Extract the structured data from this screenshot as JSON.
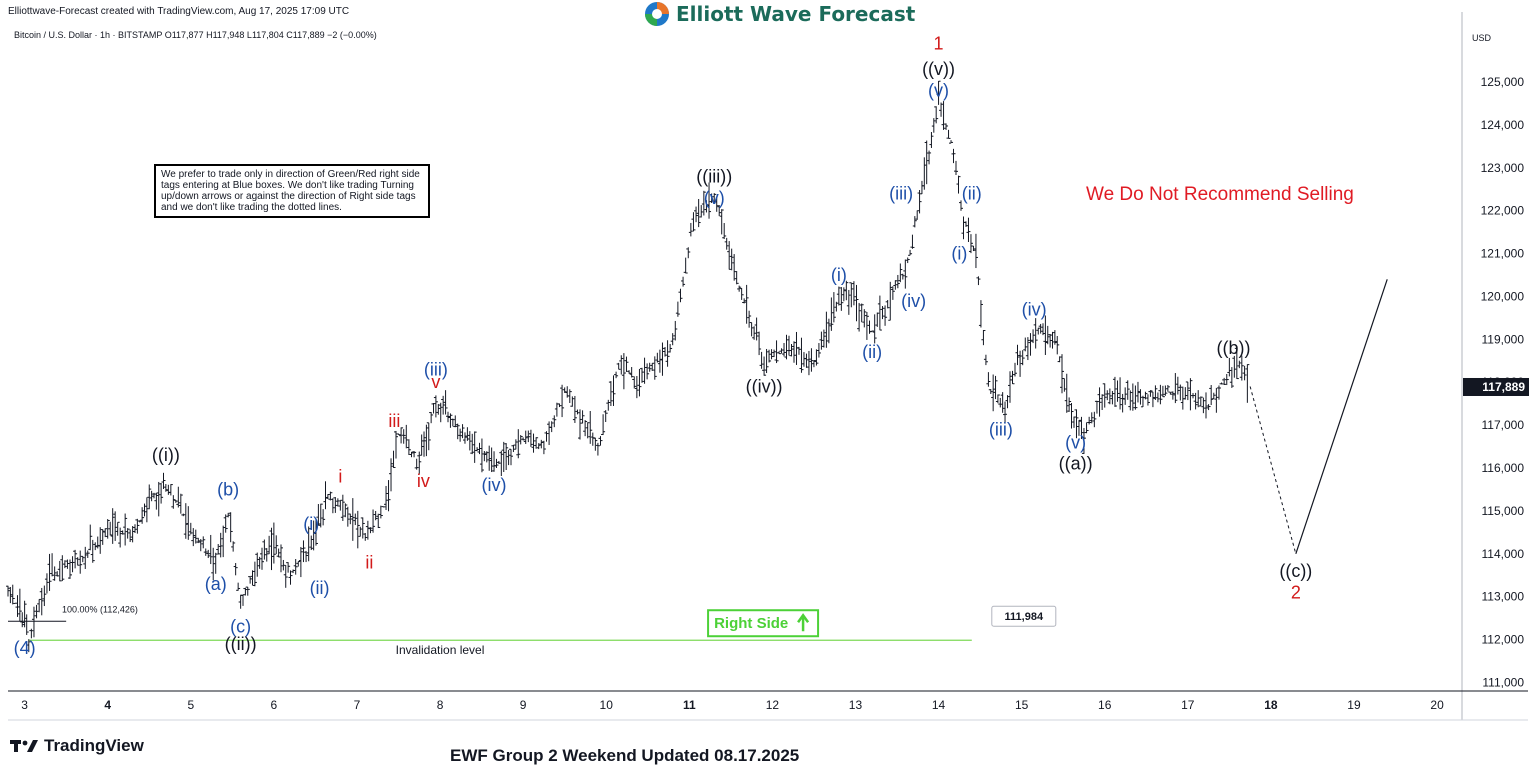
{
  "header": {
    "credit": "Elliottwave-Forecast created with TradingView.com, Aug 17, 2025 17:09 UTC",
    "logo_text": "Elliott Wave Forecast",
    "symbol_line": "Bitcoin / U.S. Dollar · 1h · BITSTAMP  O117,877  H117,948  L117,804  C117,889  −2 (−0.00%)"
  },
  "note_box": "We prefer to trade only in direction of Green/Red right side tags entering at Blue boxes. We don't like trading Turning up/down arrows or against the direction of Right side tags and we don't like trading the dotted lines.",
  "recommendation": "We Do Not Recommend Selling",
  "footer": {
    "brand": "TradingView",
    "title": "EWF Group 2 Weekend Updated 08.17.2025"
  },
  "chart_data": {
    "type": "ohlc",
    "currency": "USD",
    "x_ticks": [
      "3",
      "4",
      "5",
      "6",
      "7",
      "8",
      "9",
      "10",
      "11",
      "12",
      "13",
      "14",
      "15",
      "16",
      "17",
      "18",
      "19",
      "20"
    ],
    "y_ticks": [
      "111,000",
      "112,000",
      "113,000",
      "114,000",
      "115,000",
      "116,000",
      "117,000",
      "118,000",
      "119,000",
      "120,000",
      "121,000",
      "122,000",
      "123,000",
      "124,000",
      "125,000"
    ],
    "ylim": [
      110800,
      126400
    ],
    "xlim": [
      2.8,
      20.3
    ],
    "last_price": "117,889",
    "invalidation_price": "111,984",
    "invalidation_label": "Invalidation level",
    "fib_label": "100.00% (112,426)",
    "fib_level": 112426,
    "right_side_label": "Right Side",
    "price_path": [
      [
        2.8,
        113100
      ],
      [
        3.0,
        112500
      ],
      [
        3.05,
        112000
      ],
      [
        3.3,
        113500
      ],
      [
        3.7,
        113900
      ],
      [
        4.0,
        114600
      ],
      [
        4.3,
        114400
      ],
      [
        4.5,
        115200
      ],
      [
        4.7,
        115600
      ],
      [
        5.0,
        114600
      ],
      [
        5.3,
        113800
      ],
      [
        5.45,
        114900
      ],
      [
        5.6,
        112800
      ],
      [
        5.8,
        113700
      ],
      [
        6.0,
        114200
      ],
      [
        6.2,
        113500
      ],
      [
        6.45,
        114200
      ],
      [
        6.65,
        115300
      ],
      [
        6.8,
        115100
      ],
      [
        7.1,
        114400
      ],
      [
        7.35,
        115200
      ],
      [
        7.5,
        116800
      ],
      [
        7.75,
        116100
      ],
      [
        7.95,
        117500
      ],
      [
        8.3,
        116800
      ],
      [
        8.65,
        116000
      ],
      [
        9.0,
        116700
      ],
      [
        9.25,
        116500
      ],
      [
        9.5,
        117800
      ],
      [
        9.9,
        116500
      ],
      [
        10.15,
        118400
      ],
      [
        10.4,
        118000
      ],
      [
        10.8,
        118900
      ],
      [
        11.05,
        121800
      ],
      [
        11.3,
        122300
      ],
      [
        11.6,
        120200
      ],
      [
        11.9,
        118500
      ],
      [
        12.2,
        118800
      ],
      [
        12.5,
        118400
      ],
      [
        12.8,
        120000
      ],
      [
        12.95,
        120100
      ],
      [
        13.2,
        119200
      ],
      [
        13.45,
        120100
      ],
      [
        13.6,
        120500
      ],
      [
        13.8,
        122500
      ],
      [
        14.0,
        124500
      ],
      [
        14.15,
        123600
      ],
      [
        14.3,
        121800
      ],
      [
        14.45,
        121000
      ],
      [
        14.6,
        117900
      ],
      [
        14.8,
        117400
      ],
      [
        14.95,
        118500
      ],
      [
        15.2,
        119200
      ],
      [
        15.4,
        119000
      ],
      [
        15.6,
        117200
      ],
      [
        15.75,
        116900
      ],
      [
        16.0,
        117700
      ],
      [
        16.4,
        117600
      ],
      [
        16.7,
        117800
      ],
      [
        17.0,
        117700
      ],
      [
        17.25,
        117400
      ],
      [
        17.5,
        118300
      ],
      [
        17.65,
        118500
      ],
      [
        17.75,
        117900
      ]
    ],
    "projection_dotted": [
      [
        17.75,
        117900
      ],
      [
        18.3,
        114000
      ]
    ],
    "projection_solid": [
      [
        18.3,
        114000
      ],
      [
        19.4,
        120400
      ]
    ],
    "wave_labels": [
      {
        "text": "(4)",
        "x": 3.0,
        "y": 111800,
        "color": "blue"
      },
      {
        "text": "((i))",
        "x": 4.7,
        "y": 116300,
        "color": "black"
      },
      {
        "text": "(a)",
        "x": 5.3,
        "y": 113300,
        "color": "blue"
      },
      {
        "text": "(b)",
        "x": 5.45,
        "y": 115500,
        "color": "blue"
      },
      {
        "text": "(c)",
        "x": 5.6,
        "y": 112300,
        "color": "blue"
      },
      {
        "text": "((ii))",
        "x": 5.6,
        "y": 111900,
        "color": "black"
      },
      {
        "text": "(i)",
        "x": 6.45,
        "y": 114700,
        "color": "blue"
      },
      {
        "text": "(ii)",
        "x": 6.55,
        "y": 113200,
        "color": "blue"
      },
      {
        "text": "i",
        "x": 6.8,
        "y": 115800,
        "color": "red"
      },
      {
        "text": "ii",
        "x": 7.15,
        "y": 113800,
        "color": "red"
      },
      {
        "text": "iii",
        "x": 7.45,
        "y": 117100,
        "color": "red"
      },
      {
        "text": "iv",
        "x": 7.8,
        "y": 115700,
        "color": "red"
      },
      {
        "text": "v",
        "x": 7.95,
        "y": 118000,
        "color": "red"
      },
      {
        "text": "(iii)",
        "x": 7.95,
        "y": 118300,
        "color": "blue"
      },
      {
        "text": "(iv)",
        "x": 8.65,
        "y": 115600,
        "color": "blue"
      },
      {
        "text": "((iii))",
        "x": 11.3,
        "y": 122800,
        "color": "black"
      },
      {
        "text": "(v)",
        "x": 11.3,
        "y": 122300,
        "color": "blue"
      },
      {
        "text": "((iv))",
        "x": 11.9,
        "y": 117900,
        "color": "black"
      },
      {
        "text": "(i)",
        "x": 12.8,
        "y": 120500,
        "color": "blue"
      },
      {
        "text": "(ii)",
        "x": 13.2,
        "y": 118700,
        "color": "blue"
      },
      {
        "text": "(iii)",
        "x": 13.55,
        "y": 122400,
        "color": "blue"
      },
      {
        "text": "(iv)",
        "x": 13.7,
        "y": 119900,
        "color": "blue"
      },
      {
        "text": "1",
        "x": 14.0,
        "y": 125900,
        "color": "red"
      },
      {
        "text": "((v))",
        "x": 14.0,
        "y": 125300,
        "color": "black"
      },
      {
        "text": "(v)",
        "x": 14.0,
        "y": 124800,
        "color": "blue"
      },
      {
        "text": "(ii)",
        "x": 14.4,
        "y": 122400,
        "color": "blue"
      },
      {
        "text": "(i)",
        "x": 14.25,
        "y": 121000,
        "color": "blue"
      },
      {
        "text": "(iii)",
        "x": 14.75,
        "y": 116900,
        "color": "blue"
      },
      {
        "text": "(iv)",
        "x": 15.15,
        "y": 119700,
        "color": "blue"
      },
      {
        "text": "(v)",
        "x": 15.65,
        "y": 116600,
        "color": "blue"
      },
      {
        "text": "((a))",
        "x": 15.65,
        "y": 116100,
        "color": "black"
      },
      {
        "text": "((b))",
        "x": 17.55,
        "y": 118800,
        "color": "black"
      },
      {
        "text": "((c))",
        "x": 18.3,
        "y": 113600,
        "color": "black"
      },
      {
        "text": "2",
        "x": 18.3,
        "y": 113100,
        "color": "red"
      }
    ]
  }
}
